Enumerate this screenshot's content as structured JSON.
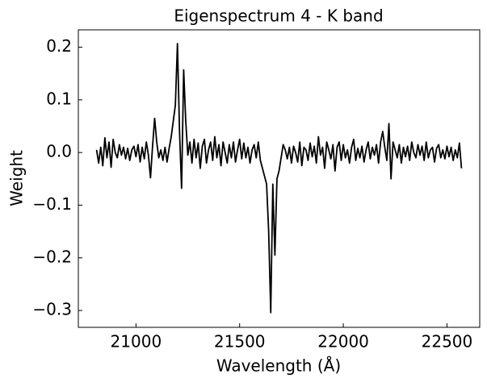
{
  "chart_data": {
    "type": "line",
    "title": "Eigenspectrum 4 - K band",
    "x_label": "Wavelength (Å)",
    "y_label": "Weight",
    "x": [
      20810,
      20820,
      20830,
      20840,
      20850,
      20860,
      20870,
      20880,
      20890,
      20900,
      20910,
      20920,
      20930,
      20940,
      20950,
      20960,
      20970,
      20980,
      20990,
      21000,
      21010,
      21020,
      21030,
      21040,
      21050,
      21060,
      21070,
      21080,
      21090,
      21100,
      21110,
      21120,
      21130,
      21140,
      21150,
      21160,
      21170,
      21180,
      21190,
      21200,
      21210,
      21220,
      21230,
      21240,
      21250,
      21260,
      21270,
      21280,
      21290,
      21300,
      21310,
      21320,
      21330,
      21340,
      21350,
      21360,
      21370,
      21380,
      21390,
      21400,
      21410,
      21420,
      21430,
      21440,
      21450,
      21460,
      21470,
      21480,
      21490,
      21500,
      21510,
      21520,
      21530,
      21540,
      21550,
      21560,
      21570,
      21580,
      21590,
      21600,
      21610,
      21620,
      21630,
      21640,
      21650,
      21660,
      21670,
      21680,
      21690,
      21700,
      21710,
      21720,
      21730,
      21740,
      21750,
      21760,
      21770,
      21780,
      21790,
      21800,
      21810,
      21820,
      21830,
      21840,
      21850,
      21860,
      21870,
      21880,
      21890,
      21900,
      21910,
      21920,
      21930,
      21940,
      21950,
      21960,
      21970,
      21980,
      21990,
      22000,
      22010,
      22020,
      22030,
      22040,
      22050,
      22060,
      22070,
      22080,
      22090,
      22100,
      22110,
      22120,
      22130,
      22140,
      22150,
      22160,
      22170,
      22180,
      22190,
      22200,
      22210,
      22220,
      22230,
      22240,
      22250,
      22260,
      22270,
      22280,
      22290,
      22300,
      22310,
      22320,
      22330,
      22340,
      22350,
      22360,
      22370,
      22380,
      22390,
      22400,
      22410,
      22420,
      22430,
      22440,
      22450,
      22460,
      22470,
      22480,
      22490,
      22500,
      22510,
      22520,
      22530,
      22540,
      22550,
      22560,
      22570
    ],
    "values": [
      0.005,
      -0.02,
      0.01,
      -0.025,
      0.028,
      -0.01,
      0.02,
      -0.028,
      0.025,
      0.0,
      -0.01,
      0.015,
      -0.005,
      0.01,
      -0.012,
      0.008,
      -0.015,
      0.005,
      0.012,
      -0.008,
      0.015,
      -0.018,
      0.01,
      -0.012,
      0.02,
      -0.005,
      -0.048,
      0.012,
      0.065,
      0.02,
      -0.01,
      0.005,
      -0.015,
      0.01,
      -0.018,
      0.008,
      0.03,
      0.06,
      0.09,
      0.207,
      0.04,
      -0.068,
      0.157,
      0.06,
      -0.005,
      0.02,
      -0.02,
      0.025,
      -0.01,
      0.018,
      -0.03,
      0.012,
      0.025,
      -0.02,
      0.005,
      0.02,
      -0.015,
      0.03,
      -0.01,
      0.015,
      -0.025,
      0.02,
      0.0,
      -0.02,
      0.015,
      -0.01,
      0.02,
      -0.018,
      0.005,
      0.025,
      -0.012,
      0.018,
      -0.01,
      0.01,
      -0.02,
      0.005,
      0.015,
      -0.01,
      0.02,
      -0.015,
      -0.03,
      -0.045,
      -0.06,
      -0.15,
      -0.304,
      -0.06,
      -0.195,
      -0.05,
      -0.035,
      -0.01,
      0.015,
      0.005,
      -0.012,
      0.01,
      -0.02,
      0.012,
      0.0,
      -0.018,
      0.02,
      -0.025,
      0.01,
      0.005,
      -0.015,
      0.018,
      -0.008,
      0.012,
      -0.02,
      0.03,
      -0.005,
      0.01,
      -0.03,
      0.02,
      0.005,
      -0.012,
      0.015,
      -0.035,
      0.01,
      0.02,
      -0.015,
      0.015,
      -0.01,
      0.005,
      -0.02,
      0.01,
      0.025,
      -0.015,
      0.008,
      -0.01,
      0.012,
      -0.018,
      0.005,
      0.02,
      -0.012,
      0.01,
      -0.005,
      0.015,
      -0.02,
      0.02,
      0.04,
      0.01,
      -0.015,
      0.055,
      -0.05,
      0.02,
      0.005,
      -0.01,
      0.015,
      -0.02,
      0.01,
      -0.008,
      0.012,
      -0.015,
      0.02,
      0.0,
      -0.01,
      0.015,
      -0.005,
      0.012,
      -0.015,
      0.02,
      -0.01,
      0.005,
      0.01,
      -0.018,
      0.008,
      0.015,
      -0.01,
      0.005,
      -0.012,
      0.012,
      -0.008,
      0.01,
      -0.015,
      0.005,
      -0.01,
      0.018,
      -0.03
    ],
    "color": "#000000",
    "xlim": [
      20722,
      22658
    ],
    "xticks": [
      21000,
      21500,
      22000,
      22500
    ],
    "ylim": [
      -0.332,
      0.233
    ],
    "yticks": [
      {
        "value": -0.3,
        "label": "−0.3"
      },
      {
        "value": -0.2,
        "label": "−0.2"
      },
      {
        "value": -0.1,
        "label": "−0.1"
      },
      {
        "value": 0.0,
        "label": "0.0"
      },
      {
        "value": 0.1,
        "label": "0.1"
      },
      {
        "value": 0.2,
        "label": "0.2"
      }
    ],
    "grid": false
  }
}
